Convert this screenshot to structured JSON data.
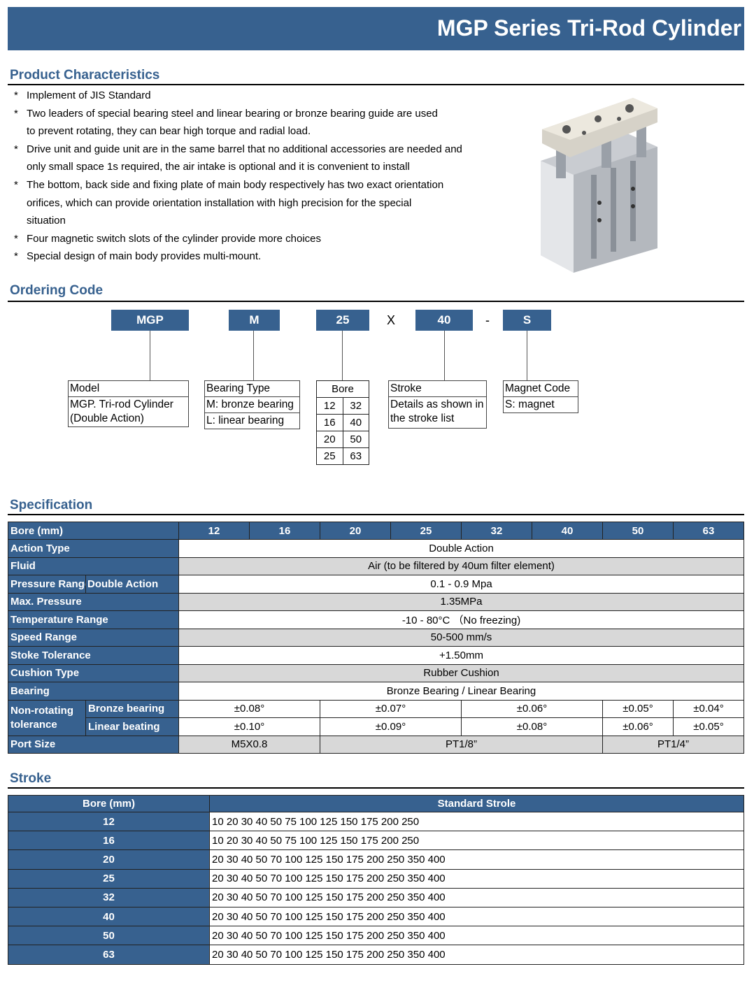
{
  "title": "MGP Series Tri-Rod Cylinder",
  "characteristics": {
    "heading": "Product Characteristics",
    "items": [
      "Implement of JIS Standard",
      "Two leaders of special bearing steel and linear bearing or bronze bearing guide are used to prevent rotating, they can bear high torque and radial load.",
      "Drive unit and guide unit are in the same barrel that no additional accessories are needed and only small space 1s required, the air intake is optional and it is convenient to install",
      "The bottom, back side and fixing plate of main body respectively has two exact orientation orifices, which can provide orientation installation with high precision for the special situation",
      "Four magnetic switch slots of the cylinder provide more choices",
      "Special design of main body provides multi-mount."
    ]
  },
  "ordering": {
    "heading": "Ordering Code",
    "codes": [
      "MGP",
      "M",
      "25",
      "40",
      "S"
    ],
    "separators": [
      "X",
      "-"
    ],
    "model": {
      "title": "Model",
      "desc": "MGP. Tri-rod Cylinder (Double Action)"
    },
    "bearing": {
      "title": "Bearing Type",
      "options": [
        "M: bronze bearing",
        "L: linear bearing"
      ]
    },
    "bore": {
      "title": "Bore",
      "values": [
        [
          "12",
          "32"
        ],
        [
          "16",
          "40"
        ],
        [
          "20",
          "50"
        ],
        [
          "25",
          "63"
        ]
      ]
    },
    "stroke": {
      "title": "Stroke",
      "desc": "Details as shown in the stroke list"
    },
    "magnet": {
      "title": "Magnet Code",
      "options": [
        "S: magnet"
      ]
    }
  },
  "specification": {
    "heading": "Specification",
    "bore_label": "Bore (mm)",
    "bores": [
      "12",
      "16",
      "20",
      "25",
      "32",
      "40",
      "50",
      "63"
    ],
    "rows": [
      {
        "label": "Action Type",
        "value": "Double Action"
      },
      {
        "label": "Fluid",
        "value": "Air (to be filtered by 40um filter element)"
      },
      {
        "label": "Pressure Range",
        "sublabel": "Double Action",
        "value": "0.1 - 0.9 Mpa"
      },
      {
        "label": "Max. Pressure",
        "value": "1.35MPa"
      },
      {
        "label": "Temperature Range",
        "value": "-10 - 80°C （No freezing)"
      },
      {
        "label": "Speed Range",
        "value": "50-500 mm/s"
      },
      {
        "label": "Stoke Tolerance",
        "value": "+1.50mm"
      },
      {
        "label": "Cushion Type",
        "value": "Rubber Cushion"
      },
      {
        "label": "Bearing",
        "value": "Bronze Bearing / Linear Bearing"
      }
    ],
    "tolerance": {
      "label": "Non-rotating tolerance",
      "bronze": {
        "label": "Bronze bearing",
        "values": [
          "±0.08°",
          "±0.07°",
          "±0.06°",
          "±0.05°",
          "±0.04°"
        ]
      },
      "linear": {
        "label": "Linear beating",
        "values": [
          "±0.10°",
          "±0.09°",
          "±0.08°",
          "±0.06°",
          "±0.05°"
        ]
      }
    },
    "port": {
      "label": "Port Size",
      "values": [
        "M5X0.8",
        "PT1/8”",
        "PT1/4”"
      ]
    }
  },
  "stroke": {
    "heading": "Stroke",
    "columns": [
      "Bore (mm)",
      "Standard Strole"
    ],
    "rows": [
      [
        "12",
        "10 20 30 40 50 75 100 125 150 175 200 250"
      ],
      [
        "16",
        "10 20 30 40 50 75 100 125 150 175 200 250"
      ],
      [
        "20",
        "20 30 40 50 70 100 125 150 175 200 250 350 400"
      ],
      [
        "25",
        "20 30 40 50 70 100 125 150 175 200 250 350 400"
      ],
      [
        "32",
        "20 30 40 50 70 100 125 150 175 200 250 350 400"
      ],
      [
        "40",
        "20 30 40 50 70 100 125 150 175 200 250 350 400"
      ],
      [
        "50",
        "20 30 40 50 70 100 125 150 175 200 250 350 400"
      ],
      [
        "63",
        "20 30 40 50 70 100 125 150 175 200 250 350 400"
      ]
    ]
  },
  "colors": {
    "brand": "#37618f",
    "alt_row": "#d8d8d8"
  }
}
